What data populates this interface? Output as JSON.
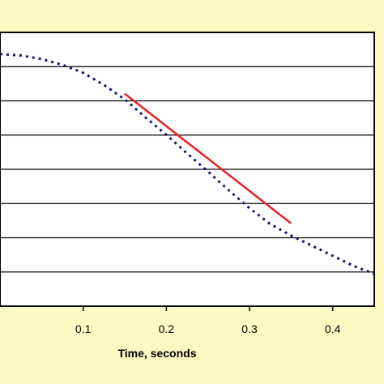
{
  "chart_data": {
    "type": "line",
    "title": "",
    "xlabel": "Time, seconds",
    "ylabel": "",
    "xlim": [
      0.0,
      0.45
    ],
    "x_ticks": [
      0.1,
      0.2,
      0.3,
      0.4
    ],
    "x_tick_labels": [
      "0.1",
      "0.2",
      "0.3",
      "0.4"
    ],
    "y_gridlines": 7,
    "grid": "horizontal",
    "legend": "none",
    "colors": {
      "plot_background": "#ffffff",
      "page_background": "#fdf9c3",
      "curve": "#14146e",
      "tangent": "#e8201f"
    },
    "series": [
      {
        "style": "dotted",
        "color": "#14146e",
        "x": [
          0.0,
          0.025,
          0.05,
          0.075,
          0.1,
          0.125,
          0.15,
          0.175,
          0.2,
          0.225,
          0.25,
          0.275,
          0.3,
          0.325,
          0.35,
          0.375,
          0.4,
          0.425,
          0.45
        ],
        "y": [
          0.0,
          -0.02,
          -0.07,
          -0.15,
          -0.26,
          -0.43,
          -0.63,
          -0.88,
          -1.12,
          -1.38,
          -1.63,
          -1.89,
          -2.14,
          -2.36,
          -2.52,
          -2.66,
          -2.8,
          -2.94,
          -3.05
        ]
      },
      {
        "style": "solid",
        "color": "#e8201f",
        "x": [
          0.15,
          0.35
        ],
        "y": [
          -0.55,
          -2.35
        ]
      }
    ]
  }
}
